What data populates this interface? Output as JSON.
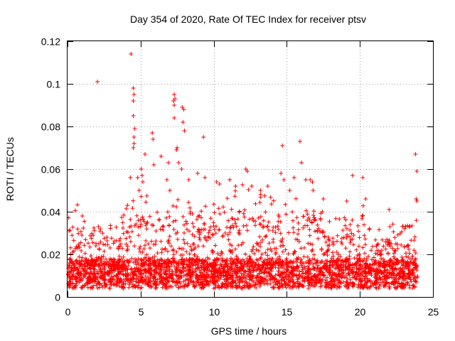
{
  "chart_data": {
    "type": "scatter",
    "title": "Day 354 of 2020, Rate Of TEC Index for receiver ptsv",
    "xlabel": "GPS time / hours",
    "ylabel": "ROTI / TECUs",
    "xlim": [
      0,
      25
    ],
    "ylim": [
      0,
      0.12
    ],
    "xticks": [
      0,
      5,
      10,
      15,
      20,
      25
    ],
    "yticks": [
      0,
      0.02,
      0.04,
      0.06,
      0.08,
      0.1,
      0.12
    ],
    "xtick_labels": [
      "0",
      "5",
      "10",
      "15",
      "20",
      "25"
    ],
    "ytick_labels": [
      "0",
      "0.02",
      "0.04",
      "0.06",
      "0.08",
      "0.1",
      "0.12"
    ],
    "grid": true,
    "legend": "none",
    "marker": "plus",
    "color": "#ff0000",
    "outliers": [
      [
        2.05,
        0.101
      ],
      [
        4.35,
        0.114
      ],
      [
        4.5,
        0.098
      ],
      [
        4.55,
        0.095
      ],
      [
        4.5,
        0.092
      ],
      [
        4.5,
        0.085
      ],
      [
        4.6,
        0.079
      ],
      [
        4.55,
        0.075
      ],
      [
        4.5,
        0.07
      ],
      [
        4.55,
        0.072
      ],
      [
        7.3,
        0.095
      ],
      [
        7.35,
        0.093
      ],
      [
        7.25,
        0.092
      ],
      [
        7.3,
        0.09
      ],
      [
        7.3,
        0.084
      ],
      [
        7.85,
        0.089
      ],
      [
        7.95,
        0.088
      ],
      [
        7.9,
        0.082
      ],
      [
        7.5,
        0.07
      ],
      [
        7.45,
        0.069
      ],
      [
        8.0,
        0.078
      ],
      [
        9.3,
        0.075
      ],
      [
        5.3,
        0.067
      ],
      [
        5.8,
        0.077
      ],
      [
        5.85,
        0.074
      ],
      [
        6.4,
        0.066
      ],
      [
        6.9,
        0.063
      ],
      [
        7.6,
        0.063
      ],
      [
        5.05,
        0.06
      ],
      [
        5.1,
        0.057
      ],
      [
        4.3,
        0.056
      ],
      [
        4.8,
        0.056
      ],
      [
        4.9,
        0.05
      ],
      [
        5.15,
        0.054
      ],
      [
        5.9,
        0.062
      ],
      [
        6.8,
        0.055
      ],
      [
        7.0,
        0.05
      ],
      [
        7.8,
        0.06
      ],
      [
        8.3,
        0.055
      ],
      [
        8.9,
        0.058
      ],
      [
        9.4,
        0.056
      ],
      [
        10.2,
        0.054
      ],
      [
        10.4,
        0.053
      ],
      [
        11.1,
        0.055
      ],
      [
        11.5,
        0.052
      ],
      [
        12.2,
        0.06
      ],
      [
        12.3,
        0.059
      ],
      [
        12.6,
        0.052
      ],
      [
        13.2,
        0.05
      ],
      [
        13.7,
        0.052
      ],
      [
        14.6,
        0.058
      ],
      [
        14.7,
        0.071
      ],
      [
        14.8,
        0.055
      ],
      [
        15.2,
        0.05
      ],
      [
        15.5,
        0.056
      ],
      [
        15.9,
        0.073
      ],
      [
        16.0,
        0.063
      ],
      [
        16.3,
        0.055
      ],
      [
        16.6,
        0.055
      ],
      [
        16.8,
        0.05
      ],
      [
        17.5,
        0.046
      ],
      [
        19.1,
        0.045
      ],
      [
        19.5,
        0.057
      ],
      [
        20.2,
        0.056
      ],
      [
        20.4,
        0.046
      ],
      [
        22.0,
        0.041
      ],
      [
        23.8,
        0.067
      ],
      [
        23.9,
        0.059
      ],
      [
        23.85,
        0.046
      ],
      [
        23.9,
        0.045
      ]
    ]
  }
}
